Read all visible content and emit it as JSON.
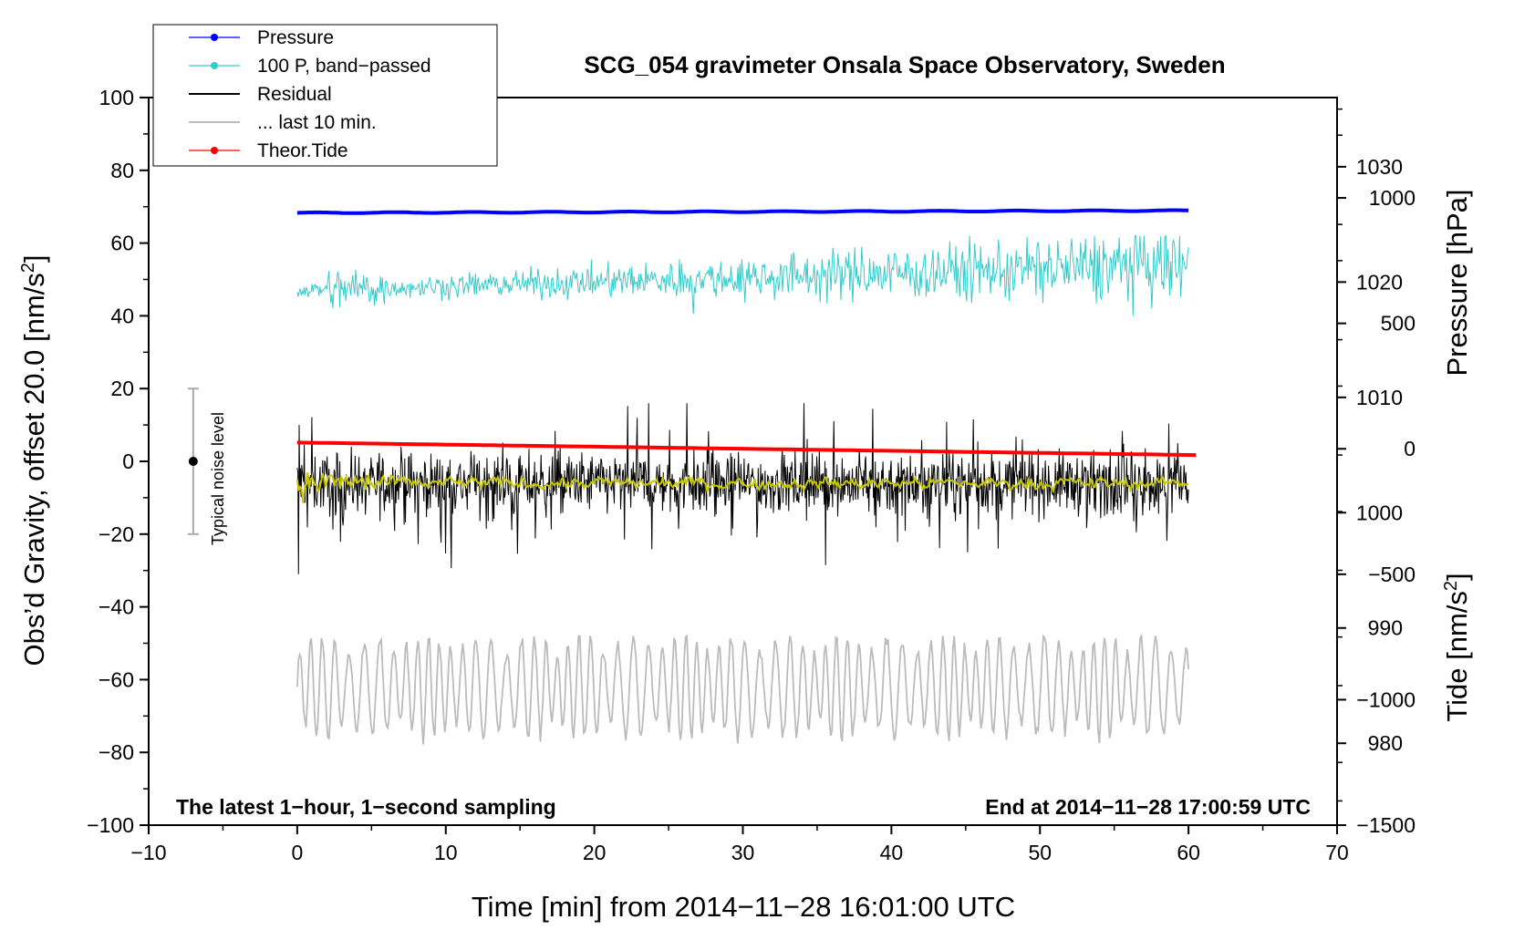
{
  "chart_data": {
    "type": "line",
    "title": "SCG_054 gravimeter Onsala Space Observatory, Sweden",
    "xlabel": "Time [min] from 2014−11−28 16:01:00 UTC",
    "ylabel": "Obs’d Gravity, offset 20.0 [nm/s",
    "ylabel_sup": "2",
    "ylabel_end": "]",
    "xlim": [
      -10,
      70
    ],
    "ylim": [
      -100,
      100
    ],
    "x_ticks": [
      -10,
      0,
      10,
      20,
      30,
      40,
      50,
      60,
      70
    ],
    "x_tick_labels": [
      "−10",
      "0",
      "10",
      "20",
      "30",
      "40",
      "50",
      "60",
      "70"
    ],
    "y_ticks": [
      -100,
      -80,
      -60,
      -40,
      -20,
      0,
      20,
      40,
      60,
      80,
      100
    ],
    "y_tick_labels": [
      "−100",
      "−80",
      "−60",
      "−40",
      "−20",
      "0",
      "20",
      "40",
      "60",
      "80",
      "100"
    ],
    "right_axis_pressure": {
      "label": "Pressure [hPa]",
      "ticks": [
        980,
        990,
        1000,
        1010,
        1020,
        1030
      ],
      "tick_labels": [
        "980",
        "990",
        "1000",
        "1010",
        "1020",
        "1030"
      ],
      "range_hpa": [
        972.9,
        1036
      ]
    },
    "right_axis_tide": {
      "label": "Tide [nm/s",
      "label_sup": "2",
      "label_end": "]",
      "ticks": [
        -1500,
        -1000,
        -500,
        0,
        500,
        1000
      ],
      "tick_labels": [
        "−1500",
        "−1000",
        "−500",
        "0",
        "500",
        "1000"
      ],
      "range": [
        -1500,
        1400
      ]
    },
    "legend": [
      {
        "label": "Pressure",
        "color": "#0000ff",
        "marker": true
      },
      {
        "label": "100 P, band−passed",
        "color": "#33cccc",
        "marker": true
      },
      {
        "label": "Residual",
        "color": "#000000",
        "marker": false
      },
      {
        "label": "... last 10 min.",
        "color": "#bbbbbb",
        "marker": false
      },
      {
        "label": "Theor.Tide",
        "color": "#ff0000",
        "marker": true
      }
    ],
    "series": [
      {
        "name": "Pressure",
        "color": "#0000ff",
        "axis": "pressure_hPa",
        "x_range": [
          0,
          60
        ],
        "start": 1026.0,
        "end": 1026.2
      },
      {
        "name": "100 P, band−passed",
        "color": "#33cccc",
        "axis": "left_offset",
        "x_range": [
          0,
          60
        ],
        "center_start": 47,
        "center_end": 54,
        "amplitude_range": [
          2,
          9
        ],
        "min": 40,
        "max": 62
      },
      {
        "name": "Residual",
        "color": "#000000",
        "axis": "left_offset",
        "x_range": [
          0,
          60
        ],
        "center": -6,
        "typical_range": [
          -18,
          6
        ],
        "min": -31,
        "max": 16
      },
      {
        "name": "... last 10 min.",
        "color": "#bbbbbb",
        "axis": "left_offset",
        "x_range": [
          0,
          60
        ],
        "center": -62,
        "min": -80,
        "max": -48
      },
      {
        "name": "Theor.Tide",
        "color": "#ff0000",
        "axis": "tide_nm_s2",
        "x_range": [
          0,
          60.5
        ],
        "start": 25,
        "end": -25
      },
      {
        "name": "Residual smoothed",
        "color": "#c8c800",
        "axis": "left_offset",
        "x_range": [
          0,
          60
        ],
        "center": -6
      }
    ],
    "noise_bar": {
      "x": -7,
      "center": 0,
      "half_range": 20,
      "label": "Typical noise level"
    },
    "annotations": {
      "left_note": "The latest 1−hour, 1−second sampling",
      "right_note": "End at 2014−11−28 17:00:59 UTC"
    }
  }
}
